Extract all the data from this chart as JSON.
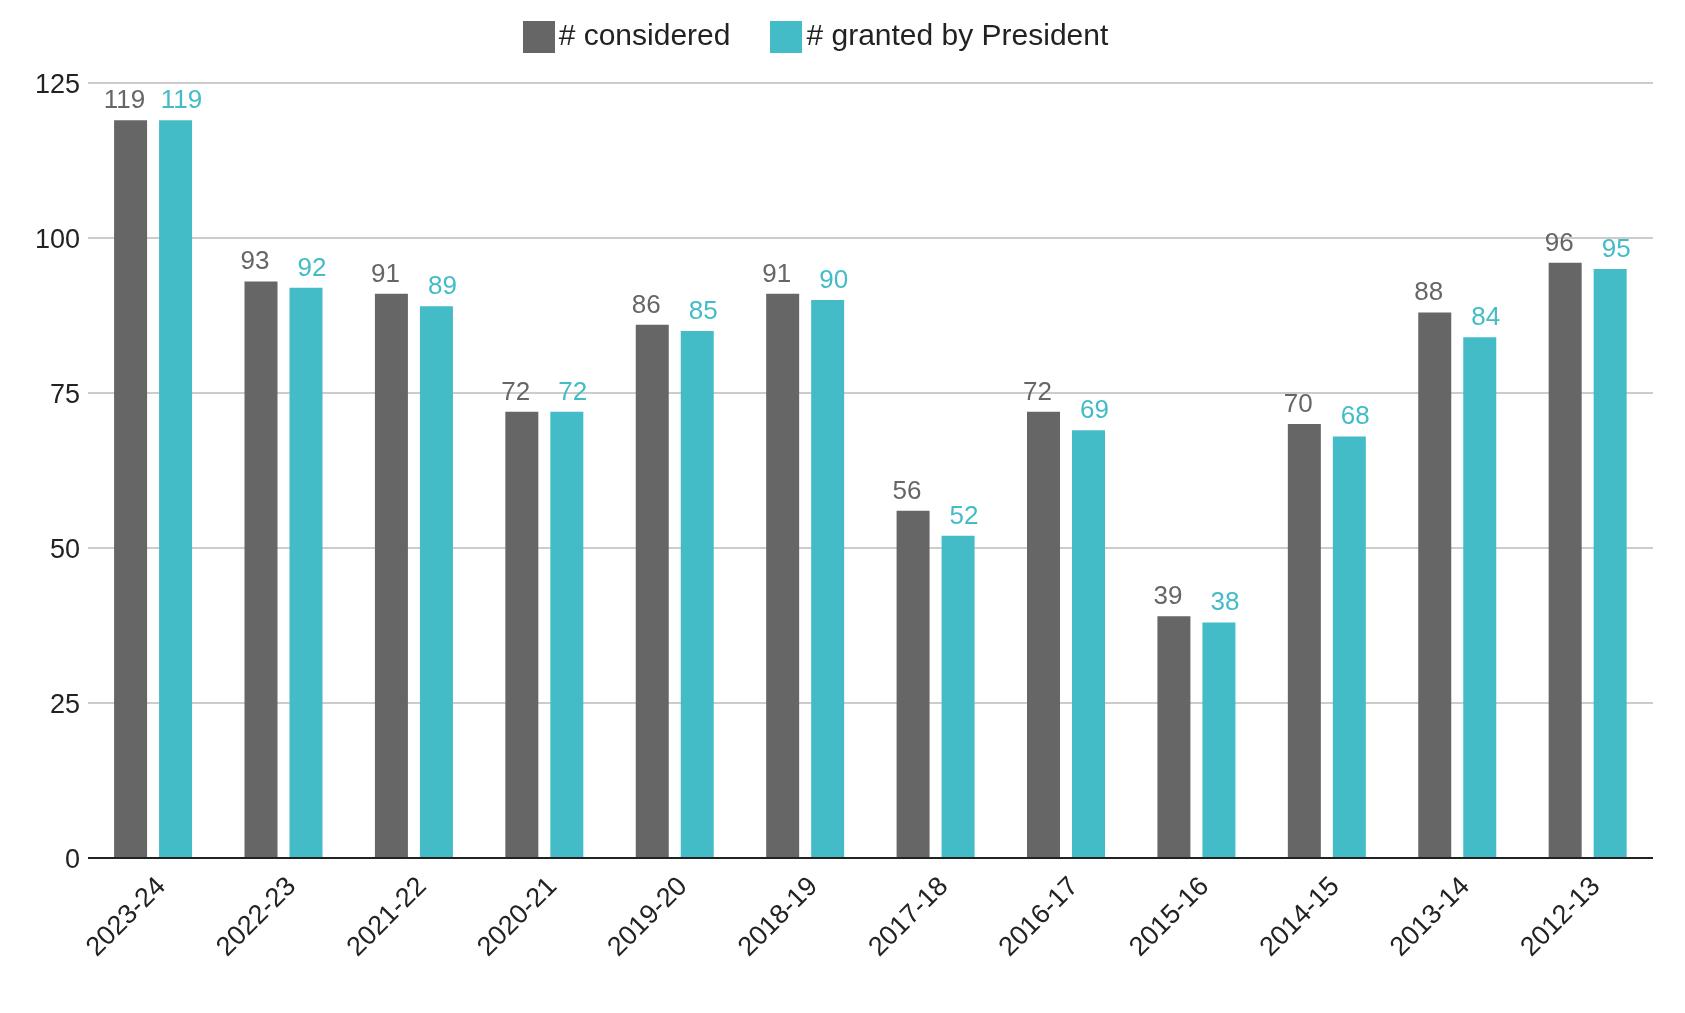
{
  "chart_data": {
    "type": "bar",
    "categories": [
      "2023-24",
      "2022-23",
      "2021-22",
      "2020-21",
      "2019-20",
      "2018-19",
      "2017-18",
      "2016-17",
      "2015-16",
      "2014-15",
      "2013-14",
      "2012-13"
    ],
    "series": [
      {
        "name": "# considered",
        "color": "#666666",
        "values": [
          119,
          93,
          91,
          72,
          86,
          91,
          56,
          72,
          39,
          70,
          88,
          96
        ]
      },
      {
        "name": "# granted by President",
        "color": "#43bcc8",
        "values": [
          119,
          92,
          89,
          72,
          85,
          90,
          52,
          69,
          38,
          68,
          84,
          95
        ]
      }
    ],
    "ylim": [
      0,
      125
    ],
    "yticks": [
      0,
      25,
      50,
      75,
      100,
      125
    ],
    "grid": "y",
    "legend": "top",
    "data_labels": true
  }
}
